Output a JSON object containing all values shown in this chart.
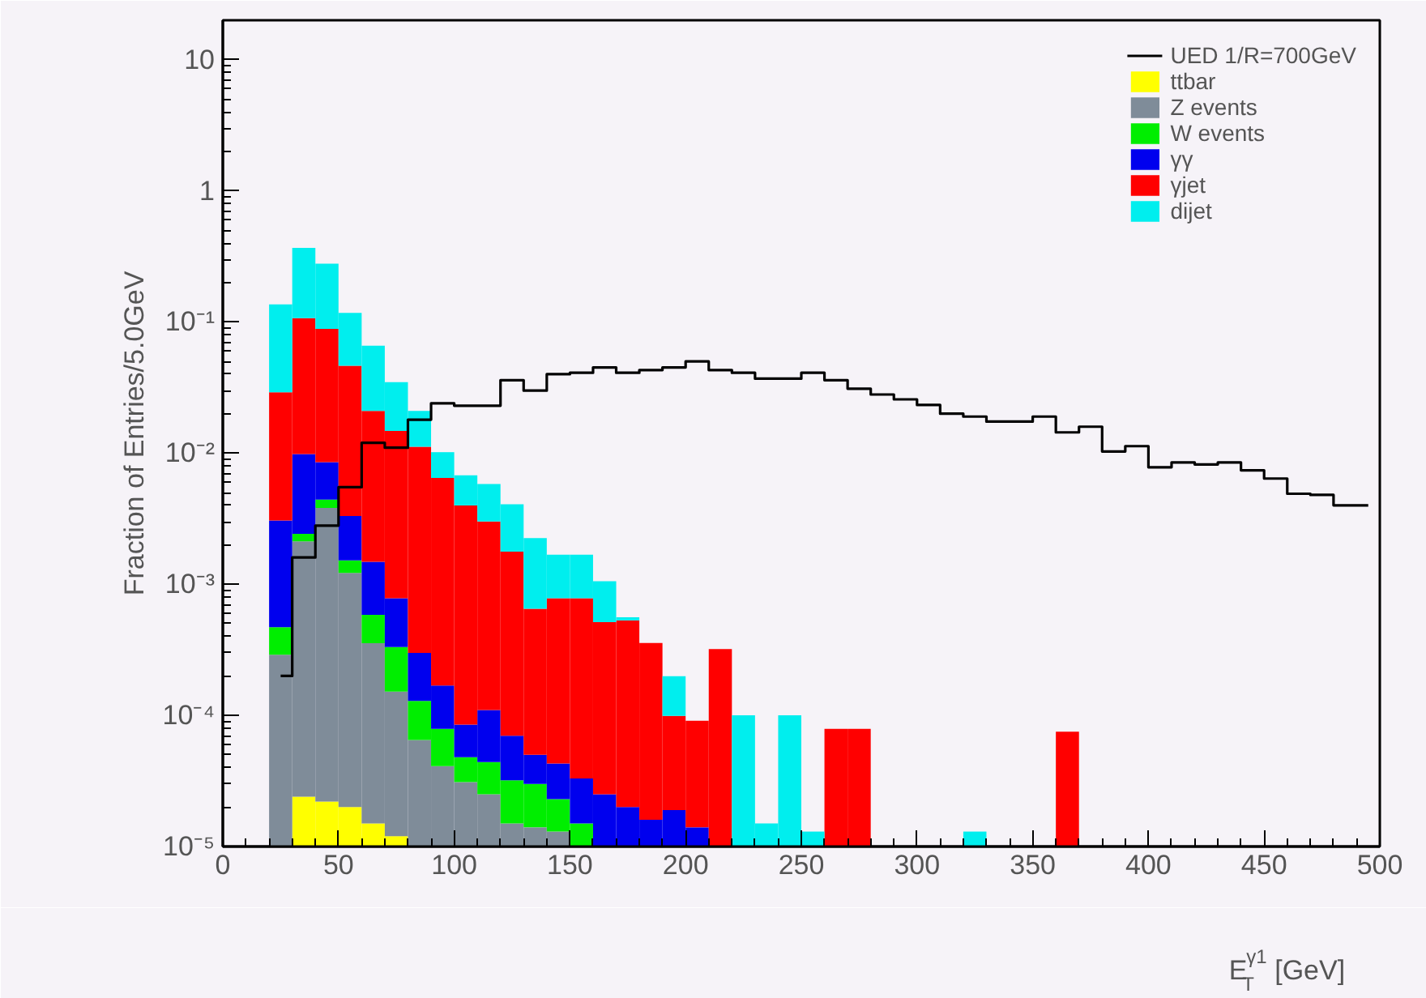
{
  "chart_data": {
    "type": "bar",
    "stacked": true,
    "log": "y",
    "grid": false,
    "legend": "top right",
    "xlabel": "E$^{γ1}$$_{T}$ [GeV]",
    "ylabel": "Fraction of Entries/5.0GeV",
    "xlim": [
      0,
      500
    ],
    "xticks": [
      0,
      50,
      100,
      150,
      200,
      250,
      300,
      350,
      400,
      450,
      500
    ],
    "ylim": [
      1e-05,
      20
    ],
    "yticks": [
      {
        "value": 1e-05,
        "label": "10⁻⁵"
      },
      {
        "value": 0.0001,
        "label": "10⁻⁴"
      },
      {
        "value": 0.001,
        "label": "10⁻³"
      },
      {
        "value": 0.01,
        "label": "10⁻²"
      },
      {
        "value": 0.1,
        "label": "10⁻¹"
      },
      1,
      10
    ],
    "x": [
      25,
      35,
      45,
      55,
      65,
      75,
      85,
      95,
      105,
      115,
      125,
      135,
      145,
      155,
      165,
      175,
      185,
      195,
      205,
      215,
      225,
      235,
      245,
      255,
      265,
      275,
      285,
      295,
      305,
      315,
      325,
      335,
      345,
      355,
      365,
      375,
      385,
      395,
      405,
      415,
      425,
      435,
      445,
      455,
      465,
      475,
      485,
      495
    ],
    "series": [
      {
        "name": "UED 1/R=700GeV",
        "type": "step",
        "color": "#000000",
        "values": [
          0.0002,
          0.0016,
          0.0028,
          0.0055,
          0.012,
          0.011,
          0.018,
          0.024,
          0.023,
          0.023,
          0.036,
          0.03,
          0.04,
          0.041,
          0.045,
          0.041,
          0.043,
          0.045,
          0.05,
          0.043,
          0.041,
          0.037,
          0.037,
          0.041,
          0.036,
          0.031,
          0.028,
          0.0257,
          0.0233,
          0.02,
          0.019,
          0.0174,
          0.0174,
          0.019,
          0.0144,
          0.0159,
          0.0103,
          0.0113,
          0.0078,
          0.0085,
          0.0082,
          0.0085,
          0.0074,
          0.0064,
          0.0049,
          0.0048,
          0.004,
          0.004
        ]
      },
      {
        "name": "ttbar",
        "color": "#ffff00",
        "values": [
          null,
          2.4e-05,
          2.2e-05,
          2e-05,
          1.5e-05,
          1.2e-05,
          null,
          null,
          null,
          null,
          null,
          null,
          null,
          null,
          null,
          null,
          null,
          null,
          null,
          null,
          null,
          null,
          null,
          null,
          null,
          null,
          null,
          null,
          null,
          null,
          null,
          null,
          null,
          null,
          null,
          null,
          null,
          null,
          null,
          null,
          null,
          null,
          null,
          null,
          null,
          null,
          null,
          null
        ]
      },
      {
        "name": "Z events",
        "color": "#7f8c99",
        "values": [
          0.00029,
          0.0021,
          0.0038,
          0.0012,
          0.00034,
          0.00014,
          6.5e-05,
          4.1e-05,
          3.1e-05,
          2.5e-05,
          1.5e-05,
          1.4e-05,
          1.3e-05,
          null,
          null,
          null,
          null,
          null,
          null,
          null,
          null,
          null,
          null,
          null,
          null,
          null,
          null,
          null,
          null,
          null,
          null,
          null,
          null,
          null,
          null,
          null,
          null,
          null,
          null,
          null,
          null,
          null,
          null,
          null,
          null,
          null,
          null,
          null
        ]
      },
      {
        "name": "W events",
        "color": "#00ee00",
        "values": [
          0.00018,
          0.0003,
          0.0006,
          0.0003,
          0.00023,
          0.00018,
          6.4e-05,
          3.8e-05,
          1.7e-05,
          1.9e-05,
          1.7e-05,
          1.6e-05,
          1e-05,
          1.5e-05,
          null,
          null,
          null,
          null,
          null,
          null,
          null,
          null,
          null,
          null,
          null,
          null,
          null,
          null,
          null,
          null,
          null,
          null,
          null,
          null,
          null,
          null,
          null,
          null,
          null,
          null,
          null,
          null,
          null,
          null,
          null,
          null,
          null,
          null
        ]
      },
      {
        "name": "γγ",
        "color": "#0000ee",
        "values": [
          0.0026,
          0.0074,
          0.0041,
          0.0018,
          0.0009,
          0.00045,
          0.00017,
          9e-05,
          3.7e-05,
          6.6e-05,
          3.8e-05,
          2e-05,
          2e-05,
          1.8e-05,
          2.5e-05,
          2e-05,
          1.6e-05,
          1.9e-05,
          1.4e-05,
          null,
          null,
          null,
          null,
          null,
          null,
          null,
          null,
          null,
          null,
          null,
          null,
          null,
          null,
          null,
          null,
          null,
          null,
          null,
          null,
          null,
          null,
          null,
          null,
          null,
          null,
          null,
          null,
          null
        ]
      },
      {
        "name": "γjet",
        "color": "#ff0000",
        "values": [
          0.026,
          0.097,
          0.08,
          0.043,
          0.0195,
          0.014,
          0.0109,
          0.0063,
          0.0039,
          0.0029,
          0.0017,
          0.0006,
          0.00074,
          0.00075,
          0.00049,
          0.00051,
          0.00034,
          8e-05,
          7.7e-05,
          0.00032,
          null,
          null,
          null,
          null,
          7.9e-05,
          7.9e-05,
          null,
          null,
          null,
          null,
          null,
          null,
          null,
          null,
          7.5e-05,
          null,
          null,
          null,
          null,
          null,
          null,
          null,
          null,
          null,
          null,
          null,
          null,
          null
        ]
      },
      {
        "name": "dijet",
        "color": "#00eeee",
        "values": [
          0.107,
          0.26,
          0.19,
          0.071,
          0.045,
          0.02,
          0.0098,
          0.0037,
          0.0028,
          0.0028,
          0.0023,
          0.0016,
          0.0009,
          0.0009,
          0.00054,
          3e-05,
          null,
          0.0001,
          null,
          null,
          0.0001,
          1.5e-05,
          0.0001,
          1.3e-05,
          null,
          null,
          null,
          null,
          null,
          null,
          1.3e-05,
          null,
          null,
          null,
          null,
          null,
          null,
          null,
          null,
          null,
          null,
          null,
          null,
          null,
          null,
          null,
          null,
          null
        ]
      }
    ]
  }
}
